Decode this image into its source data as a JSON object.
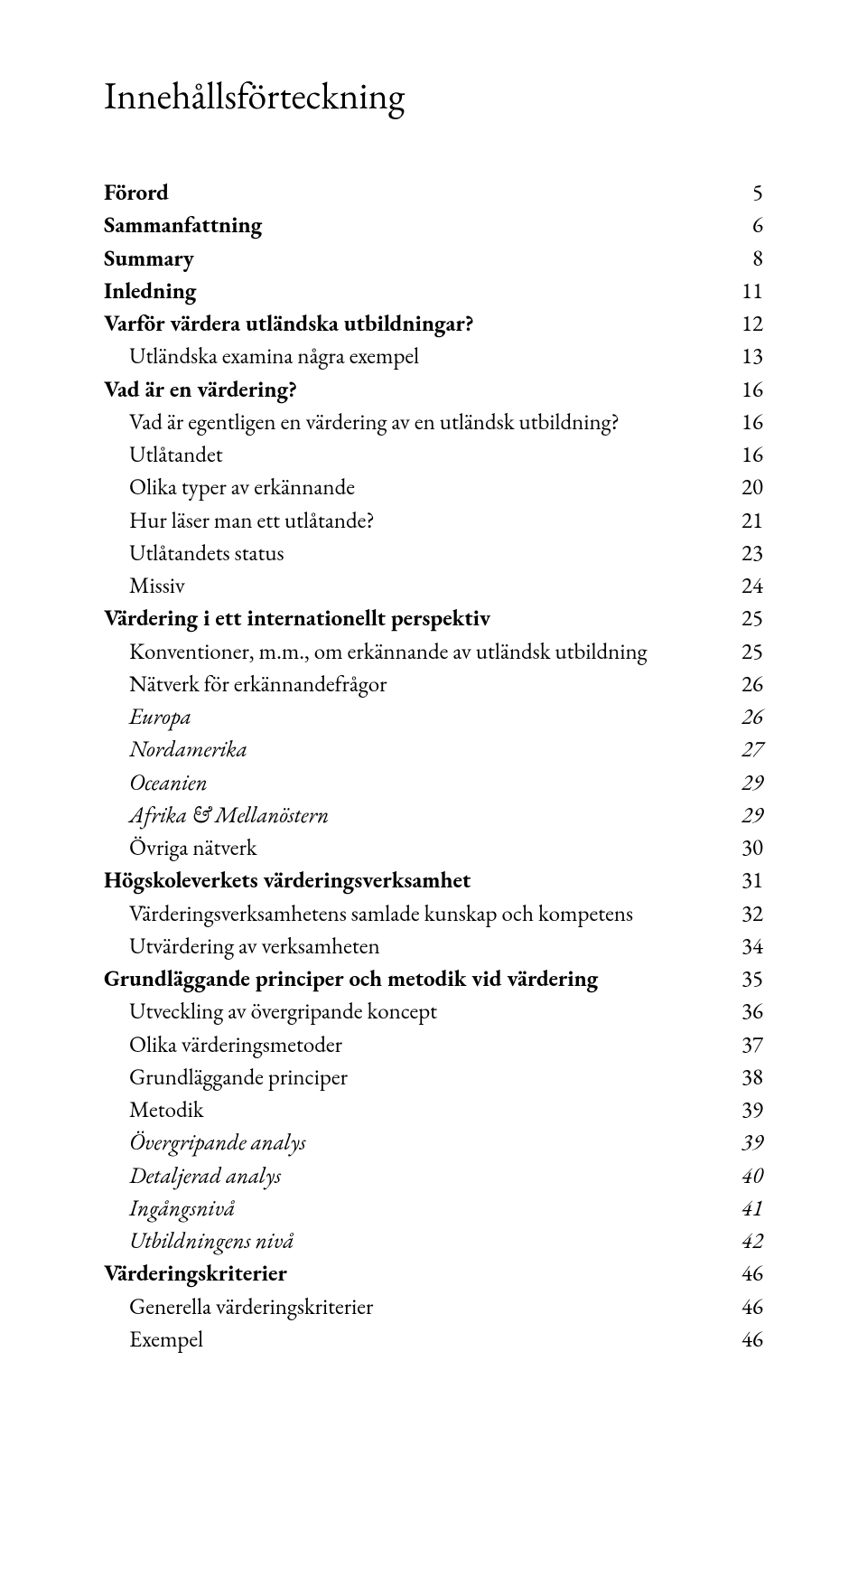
{
  "title": "Innehållsförteckning",
  "toc": [
    {
      "label": "Förord",
      "page": "5",
      "level": 0
    },
    {
      "label": "Sammanfattning",
      "page": "6",
      "level": 0
    },
    {
      "label": "Summary",
      "page": "8",
      "level": 0
    },
    {
      "label": "Inledning",
      "page": "11",
      "level": 0
    },
    {
      "label": "Varför värdera utländska utbildningar?",
      "page": "12",
      "level": 0
    },
    {
      "label": "Utländska examina några exempel",
      "page": "13",
      "level": 1
    },
    {
      "label": "Vad är en värdering?",
      "page": "16",
      "level": 0
    },
    {
      "label": "Vad är egentligen en värdering av en utländsk utbildning?",
      "page": "16",
      "level": 1
    },
    {
      "label": "Utlåtandet",
      "page": "16",
      "level": 1
    },
    {
      "label": "Olika typer av erkännande",
      "page": "20",
      "level": 1
    },
    {
      "label": "Hur läser man ett utlåtande?",
      "page": "21",
      "level": 1
    },
    {
      "label": "Utlåtandets status",
      "page": "23",
      "level": 1
    },
    {
      "label": "Missiv",
      "page": "24",
      "level": 1
    },
    {
      "label": "Värdering i ett internationellt perspektiv",
      "page": "25",
      "level": 0
    },
    {
      "label": "Konventioner, m.m., om erkännande av utländsk utbildning",
      "page": "25",
      "level": 1
    },
    {
      "label": "Nätverk för erkännandefrågor",
      "page": "26",
      "level": 1
    },
    {
      "label": "Europa",
      "page": "26",
      "level": 2
    },
    {
      "label": "Nordamerika",
      "page": "27",
      "level": 2
    },
    {
      "label": "Oceanien",
      "page": "29",
      "level": 2
    },
    {
      "label": "Afrika & Mellanöstern",
      "page": "29",
      "level": 2
    },
    {
      "label": "Övriga nätverk",
      "page": "30",
      "level": 1
    },
    {
      "label": "Högskoleverkets värderingsverksamhet",
      "page": "31",
      "level": 0
    },
    {
      "label": "Värderingsverksamhetens samlade kunskap och kompetens",
      "page": "32",
      "level": 1
    },
    {
      "label": "Utvärdering av verksamheten",
      "page": "34",
      "level": 1
    },
    {
      "label": "Grundläggande principer och metodik vid värdering",
      "page": "35",
      "level": 0
    },
    {
      "label": "Utveckling av övergripande koncept",
      "page": "36",
      "level": 1
    },
    {
      "label": "Olika värderingsmetoder",
      "page": "37",
      "level": 1
    },
    {
      "label": "Grundläggande principer",
      "page": "38",
      "level": 1
    },
    {
      "label": "Metodik",
      "page": "39",
      "level": 1
    },
    {
      "label": "Övergripande analys",
      "page": "39",
      "level": 2
    },
    {
      "label": "Detaljerad analys",
      "page": "40",
      "level": 2
    },
    {
      "label": "Ingångsnivå",
      "page": "41",
      "level": 2
    },
    {
      "label": "Utbildningens nivå",
      "page": "42",
      "level": 2
    },
    {
      "label": "Värderingskriterier",
      "page": "46",
      "level": 0
    },
    {
      "label": "Generella värderingskriterier",
      "page": "46",
      "level": 1
    },
    {
      "label": "Exempel",
      "page": "46",
      "level": 1
    }
  ]
}
